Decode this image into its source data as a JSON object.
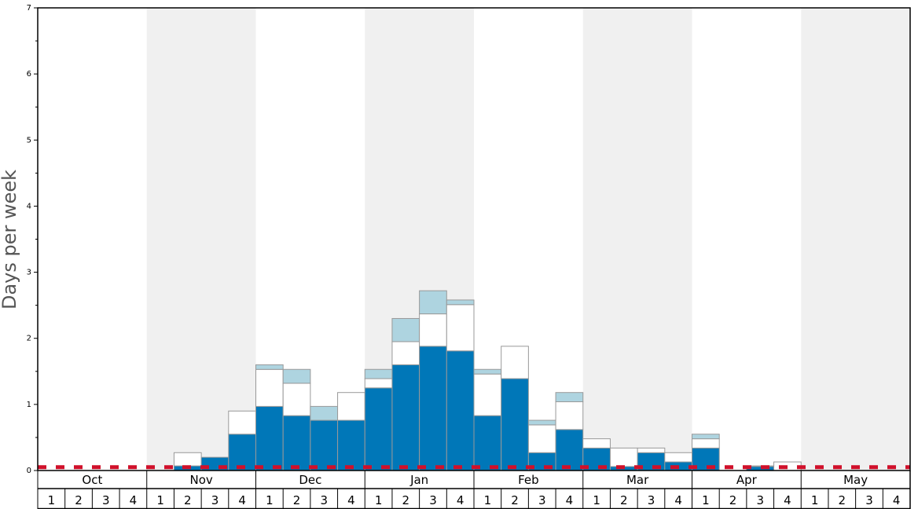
{
  "chart_data": {
    "type": "bar",
    "stacked": true,
    "xlabel": "",
    "ylabel": "Days per week",
    "ylim": [
      0,
      7
    ],
    "yticks": [
      "0",
      "1",
      "2",
      "3",
      "4",
      "5",
      "6",
      "7"
    ],
    "months": [
      "Oct",
      "Nov",
      "Dec",
      "Jan",
      "Feb",
      "Mar",
      "Apr",
      "May"
    ],
    "weeks": [
      "1",
      "2",
      "3",
      "4"
    ],
    "shaded_months": [
      "Nov",
      "Jan",
      "Mar",
      "May"
    ],
    "threshold": 0.05,
    "colors": {
      "series_1": "#0077b8",
      "series_2": "#ffffff",
      "series_3": "#aed4e0",
      "bar_outline": "#999999",
      "threshold_line": "#d0102a",
      "shaded_band": "#f0f0f0"
    },
    "series": [
      {
        "values": [
          0,
          0,
          0,
          0,
          0,
          0.07,
          0.2,
          0.55,
          0.97,
          0.83,
          0.76,
          0.76,
          1.25,
          1.6,
          1.88,
          1.81,
          0.83,
          1.39,
          0.27,
          0.62,
          0.34,
          0.06,
          0.27,
          0.13,
          0.34,
          0,
          0.06,
          0,
          0,
          0,
          0,
          0
        ]
      },
      {
        "values": [
          0,
          0,
          0,
          0,
          0,
          0.2,
          0,
          0.35,
          0.56,
          0.49,
          0,
          0.42,
          0.14,
          0.35,
          0.49,
          0.7,
          0.63,
          0.49,
          0.42,
          0.42,
          0.14,
          0.28,
          0.07,
          0.14,
          0.14,
          0,
          0,
          0.13,
          0,
          0,
          0,
          0
        ]
      },
      {
        "values": [
          0,
          0,
          0,
          0,
          0,
          0,
          0,
          0,
          0.07,
          0.21,
          0.21,
          0,
          0.14,
          0.35,
          0.35,
          0.07,
          0.07,
          0,
          0.07,
          0.14,
          0,
          0,
          0,
          0,
          0.07,
          0,
          0.01,
          0,
          0,
          0,
          0,
          0
        ]
      }
    ]
  }
}
